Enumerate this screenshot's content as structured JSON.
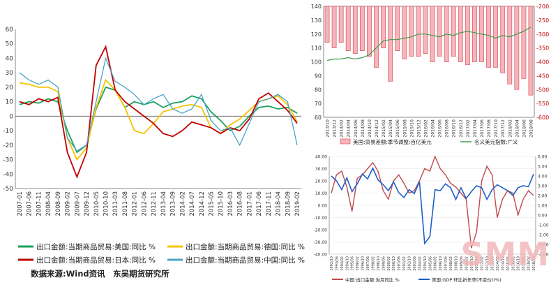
{
  "chart_data": [
    {
      "type": "line",
      "title": "",
      "x": [
        "2007-01",
        "2007-06",
        "2007-11",
        "2008-04",
        "2008-09",
        "2009-02",
        "2009-07",
        "2009-12",
        "2010-05",
        "2010-10",
        "2011-03",
        "2011-08",
        "2012-01",
        "2012-06",
        "2012-11",
        "2013-04",
        "2013-09",
        "2014-02",
        "2014-07",
        "2014-12",
        "2015-05",
        "2015-10",
        "2016-03",
        "2016-08",
        "2017-01",
        "2017-06",
        "2017-11",
        "2018-04",
        "2018-09",
        "2019-02"
      ],
      "ylim": [
        -50,
        60
      ],
      "yticks": [
        -50,
        -40,
        -30,
        -20,
        -10,
        0,
        10,
        20,
        30,
        40,
        50,
        60
      ],
      "series": [
        {
          "name": "出口金额:当期商品贸易:美国:同比 %",
          "color": "#1aa35a",
          "values": [
            8,
            10,
            9,
            12,
            10,
            -10,
            -25,
            -20,
            5,
            20,
            18,
            6,
            10,
            8,
            10,
            6,
            9,
            10,
            14,
            12,
            3,
            -3,
            -10,
            -7,
            0,
            6,
            7,
            5,
            6,
            2
          ]
        },
        {
          "name": "出口金额:当期商品贸易:德国:同比 %",
          "color": "#f5c400",
          "values": [
            23,
            22,
            20,
            20,
            17,
            -15,
            -30,
            -22,
            6,
            25,
            18,
            6,
            -10,
            -12,
            -5,
            3,
            5,
            7,
            8,
            6,
            -8,
            -12,
            -6,
            -2,
            4,
            10,
            12,
            14,
            8,
            -4
          ]
        },
        {
          "name": "出口金额:当期商品贸易:日本:同比 %",
          "color": "#c00000",
          "values": [
            10,
            8,
            12,
            10,
            13,
            -25,
            -42,
            -25,
            35,
            48,
            18,
            10,
            5,
            0,
            -5,
            -12,
            -14,
            -10,
            -4,
            -6,
            -8,
            -12,
            -8,
            -10,
            -2,
            12,
            16,
            10,
            4,
            -5
          ]
        },
        {
          "name": "出口金额:当期商品贸易:中国:同比 %",
          "color": "#4ba3c8",
          "values": [
            30,
            25,
            22,
            25,
            20,
            -15,
            -24,
            -20,
            10,
            40,
            24,
            20,
            15,
            8,
            12,
            15,
            5,
            2,
            5,
            15,
            -3,
            -10,
            -8,
            -20,
            -5,
            10,
            12,
            15,
            10,
            -20
          ]
        }
      ],
      "legend_position": "bottom",
      "source": "数据来源:Wind资讯　东吴期货研究所"
    },
    {
      "type": "bar",
      "title": "",
      "categories": [
        "2013/10",
        "2013/12",
        "2014/02",
        "2014/04",
        "2014/06",
        "2014/08",
        "2014/10",
        "2014/12",
        "2015/02",
        "2015/04",
        "2015/06",
        "2015/08",
        "2015/10",
        "2015/12",
        "2016/02",
        "2016/04",
        "2016/06",
        "2016/08",
        "2016/10",
        "2016/12",
        "2017/02",
        "2017/04",
        "2017/06",
        "2017/08",
        "2017/10",
        "2017/12",
        "2018/02",
        "2018/04",
        "2018/06",
        "2018/08"
      ],
      "y2lim": [
        -600,
        -200
      ],
      "y2ticks": [
        -600,
        -550,
        -500,
        -450,
        -400,
        -350,
        -300,
        -250,
        -200
      ],
      "ylim": [
        60,
        140
      ],
      "yticks": [
        60,
        70,
        80,
        90,
        100,
        110,
        120,
        130,
        140
      ],
      "series": [
        {
          "name": "美国:贸易差额:季节调整:百亿美元",
          "axis": "right",
          "color": "#e06070",
          "values": [
            -330,
            -350,
            -330,
            -360,
            -370,
            -360,
            -380,
            -420,
            -350,
            -470,
            -360,
            -390,
            -380,
            -380,
            -370,
            -400,
            -380,
            -400,
            -380,
            -400,
            -410,
            -400,
            -400,
            -420,
            -420,
            -440,
            -480,
            -500,
            -460,
            -520
          ]
        },
        {
          "name": "名义美元指数:广义",
          "axis": "left",
          "color": "#3f9b4f",
          "values": [
            101,
            102,
            102,
            103,
            102,
            103,
            105,
            110,
            115,
            116,
            116,
            117,
            118,
            120,
            120,
            119,
            118,
            120,
            119,
            121,
            122,
            121,
            120,
            119,
            117,
            119,
            118,
            120,
            122,
            125
          ]
        }
      ],
      "legend_position": "bottom"
    },
    {
      "type": "line",
      "title": "",
      "x": [
        "1992/10",
        "1993/06",
        "1994/02",
        "1994/10",
        "1995/06",
        "1996/02",
        "1996/10",
        "1997/06",
        "1998/02",
        "1998/10",
        "1999/06",
        "2000/02",
        "2000/10",
        "2001/06",
        "2002/02",
        "2002/10",
        "2003/06",
        "2004/02",
        "2004/10",
        "2005/06",
        "2006/02",
        "2006/10",
        "2007/06",
        "2008/02",
        "2008/10",
        "2009/06",
        "2010/02",
        "2010/10",
        "2011/06",
        "2012/02",
        "2012/10",
        "2013/06",
        "2014/02",
        "2014/10",
        "2015/06",
        "2016/02",
        "2016/10",
        "2017/06",
        "2018/02",
        "2018/10"
      ],
      "ylim": [
        -40,
        40
      ],
      "yticks": [
        -40,
        -30,
        -20,
        -10,
        0,
        10,
        20,
        30,
        40
      ],
      "y2lim": [
        -4,
        6
      ],
      "y2ticks": [
        -4,
        -3,
        -2,
        -1,
        0,
        1,
        2,
        3,
        4,
        5,
        6
      ],
      "series": [
        {
          "name": "中国:出口金额:当月同比 %",
          "axis": "left",
          "color": "#c0484c",
          "values": [
            10,
            25,
            28,
            15,
            -5,
            22,
            25,
            30,
            35,
            28,
            12,
            5,
            20,
            25,
            18,
            10,
            12,
            20,
            30,
            28,
            40,
            30,
            25,
            18,
            15,
            10,
            5,
            -35,
            -22,
            20,
            32,
            25,
            -10,
            5,
            12,
            10,
            -8,
            5,
            12,
            8
          ]
        },
        {
          "name": "美国:GDP:环比折年率(不变价)(%)",
          "axis": "right",
          "color": "#1f5fc7",
          "values": [
            4,
            3.5,
            2.6,
            3.8,
            2.4,
            3.2,
            4.2,
            3.7,
            4.8,
            3.6,
            3.1,
            2.5,
            3.4,
            2.3,
            1.8,
            2.6,
            2.2,
            3.4,
            -2.9,
            -2.2,
            2.6,
            2.5,
            3.2,
            2.8,
            1.6,
            2.8,
            1.7,
            2.4,
            3.0,
            2.8,
            1.6,
            2.6,
            3.1,
            2.8,
            2.5,
            2.0,
            2.8,
            3.0,
            2.9,
            4.2
          ]
        }
      ],
      "legend_position": "bottom"
    }
  ]
}
